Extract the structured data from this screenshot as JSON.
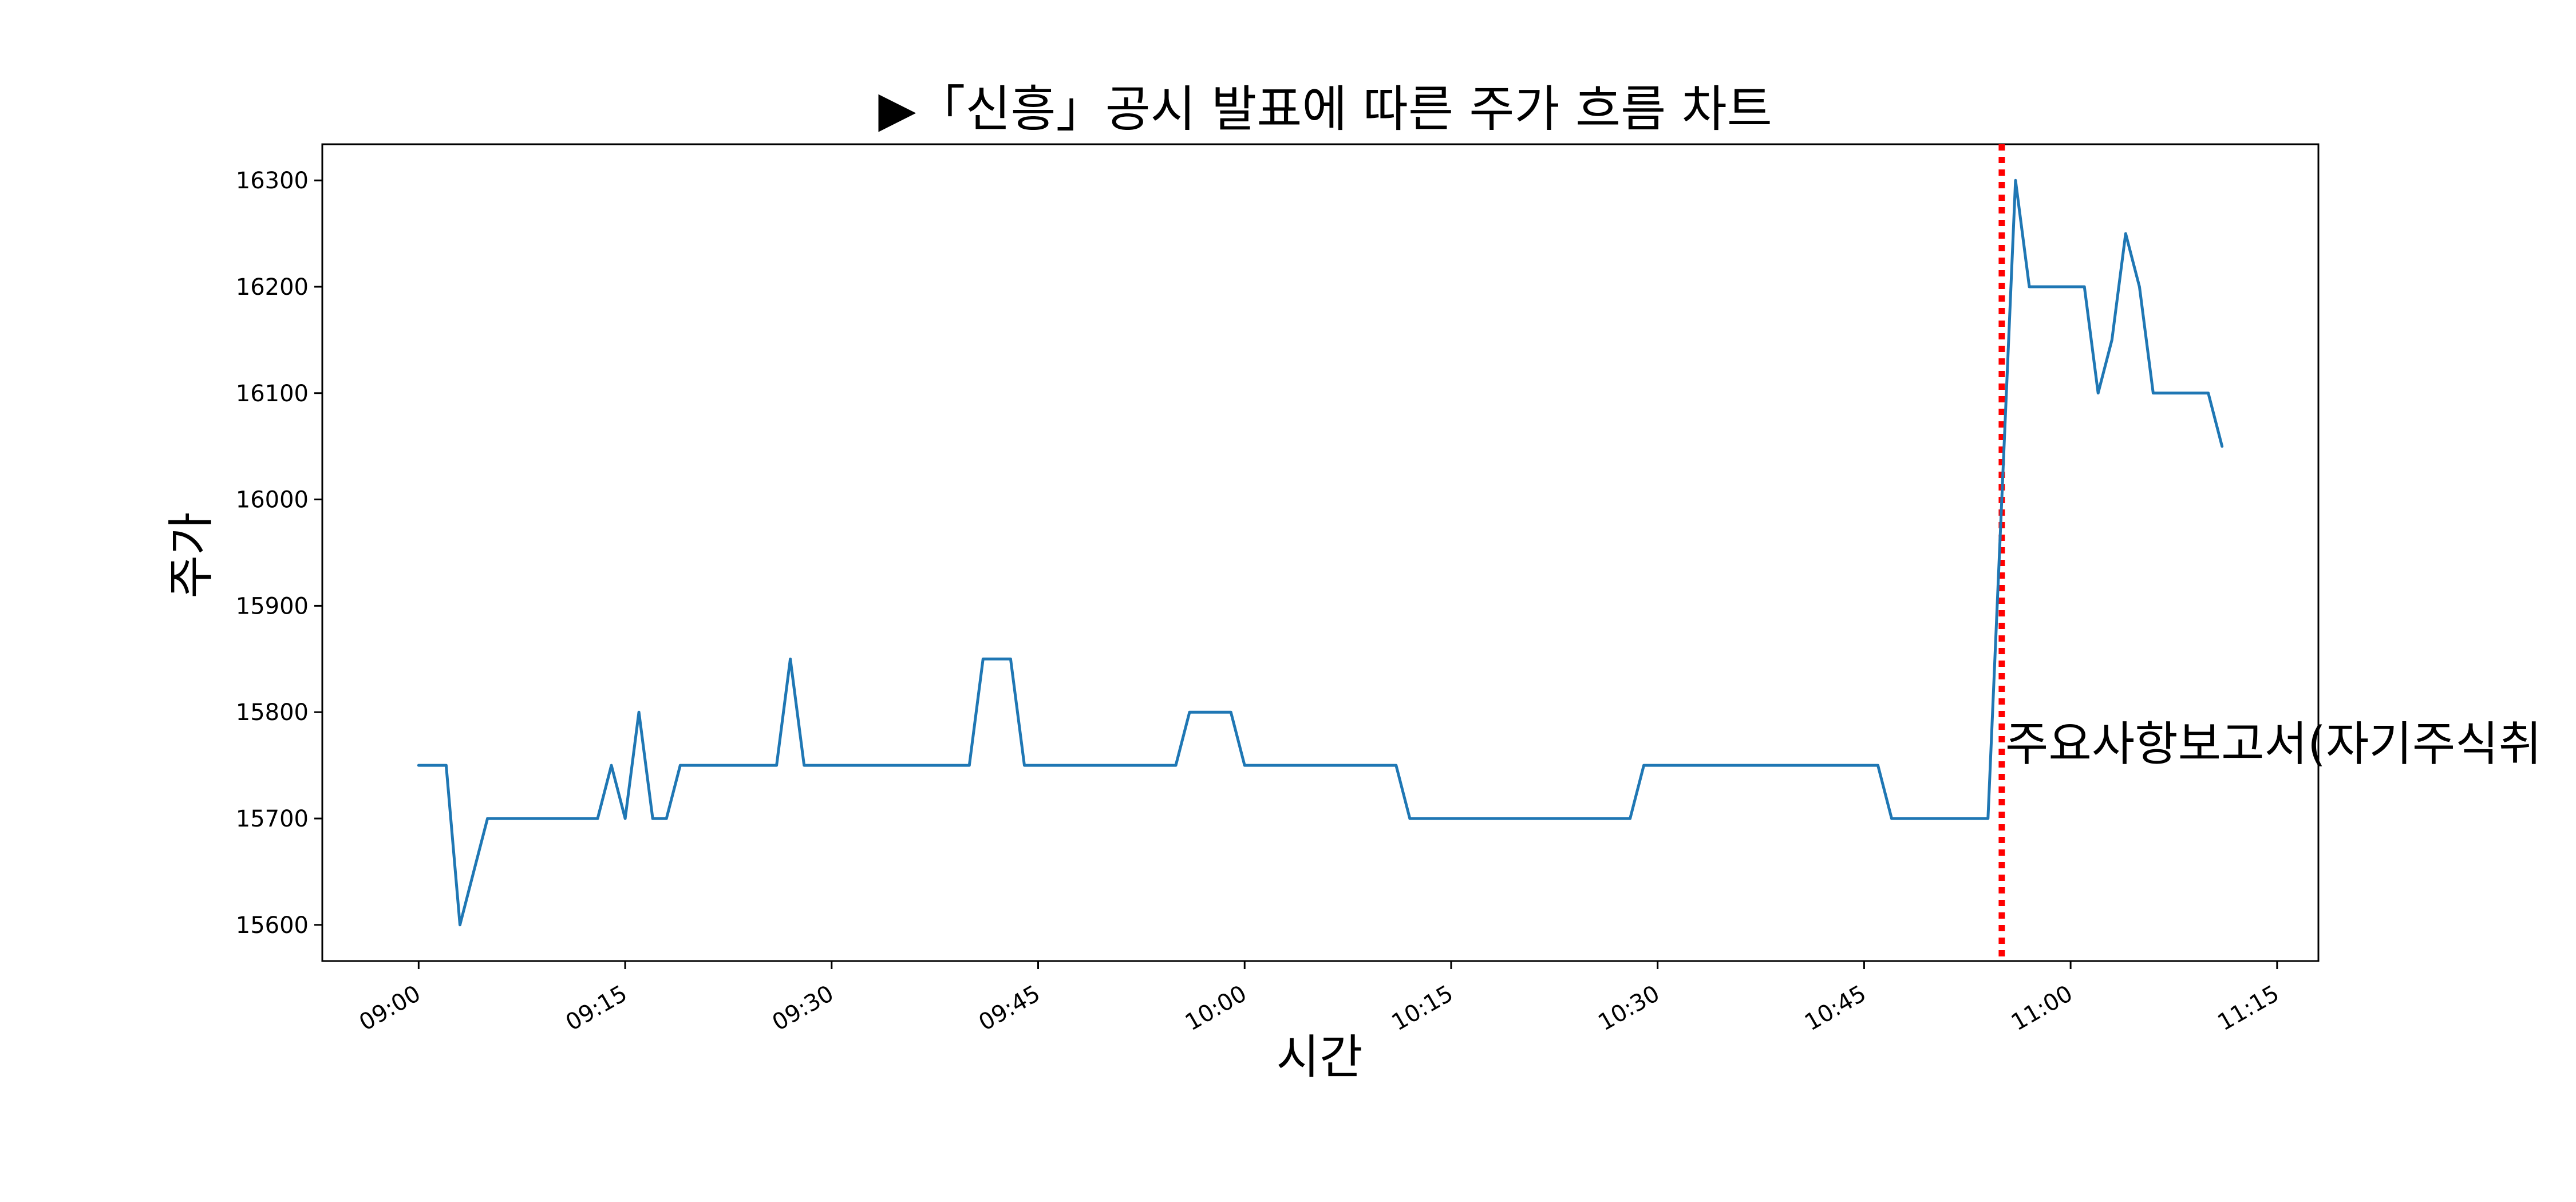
{
  "chart_data": {
    "type": "line",
    "title": "▶「신흥」공시 발표에 따른 주가 흐름 차트",
    "xlabel": "시간",
    "ylabel": "주가",
    "x_ticks": [
      "09:00",
      "09:15",
      "09:30",
      "09:45",
      "10:00",
      "10:15",
      "10:30",
      "10:45",
      "11:00",
      "11:15"
    ],
    "y_ticks": [
      15600,
      15700,
      15800,
      15900,
      16000,
      16100,
      16200,
      16300
    ],
    "xlim": [
      "08:53",
      "11:18"
    ],
    "ylim": [
      15566,
      16334
    ],
    "grid": false,
    "series": [
      {
        "color": "#1f77b4",
        "points": [
          [
            "09:00",
            15750
          ],
          [
            "09:01",
            15750
          ],
          [
            "09:02",
            15750
          ],
          [
            "09:03",
            15600
          ],
          [
            "09:04",
            15650
          ],
          [
            "09:05",
            15700
          ],
          [
            "09:06",
            15700
          ],
          [
            "09:07",
            15700
          ],
          [
            "09:08",
            15700
          ],
          [
            "09:09",
            15700
          ],
          [
            "09:10",
            15700
          ],
          [
            "09:11",
            15700
          ],
          [
            "09:12",
            15700
          ],
          [
            "09:13",
            15700
          ],
          [
            "09:14",
            15750
          ],
          [
            "09:15",
            15700
          ],
          [
            "09:16",
            15800
          ],
          [
            "09:17",
            15700
          ],
          [
            "09:18",
            15700
          ],
          [
            "09:19",
            15750
          ],
          [
            "09:20",
            15750
          ],
          [
            "09:25",
            15750
          ],
          [
            "09:26",
            15750
          ],
          [
            "09:27",
            15850
          ],
          [
            "09:28",
            15750
          ],
          [
            "09:29",
            15750
          ],
          [
            "09:35",
            15750
          ],
          [
            "09:40",
            15750
          ],
          [
            "09:41",
            15850
          ],
          [
            "09:42",
            15850
          ],
          [
            "09:43",
            15850
          ],
          [
            "09:44",
            15750
          ],
          [
            "09:50",
            15750
          ],
          [
            "09:55",
            15750
          ],
          [
            "09:56",
            15800
          ],
          [
            "09:57",
            15800
          ],
          [
            "09:58",
            15800
          ],
          [
            "09:59",
            15800
          ],
          [
            "10:00",
            15750
          ],
          [
            "10:05",
            15750
          ],
          [
            "10:10",
            15750
          ],
          [
            "10:11",
            15750
          ],
          [
            "10:12",
            15700
          ],
          [
            "10:15",
            15700
          ],
          [
            "10:20",
            15700
          ],
          [
            "10:25",
            15700
          ],
          [
            "10:28",
            15700
          ],
          [
            "10:29",
            15750
          ],
          [
            "10:35",
            15750
          ],
          [
            "10:40",
            15750
          ],
          [
            "10:45",
            15750
          ],
          [
            "10:46",
            15750
          ],
          [
            "10:47",
            15700
          ],
          [
            "10:50",
            15700
          ],
          [
            "10:54",
            15700
          ],
          [
            "10:55",
            16000
          ],
          [
            "10:56",
            16300
          ],
          [
            "10:57",
            16200
          ],
          [
            "10:58",
            16200
          ],
          [
            "10:59",
            16200
          ],
          [
            "11:00",
            16200
          ],
          [
            "11:01",
            16200
          ],
          [
            "11:02",
            16100
          ],
          [
            "11:03",
            16150
          ],
          [
            "11:04",
            16250
          ],
          [
            "11:05",
            16200
          ],
          [
            "11:06",
            16100
          ],
          [
            "11:07",
            16100
          ],
          [
            "11:08",
            16100
          ],
          [
            "11:09",
            16100
          ],
          [
            "11:10",
            16100
          ],
          [
            "11:11",
            16050
          ]
        ]
      }
    ],
    "event_line": {
      "x": "10:55",
      "color": "#ff0000",
      "style": "dotted"
    },
    "annotation": {
      "text": "주요사항보고서(자기주식취",
      "x": "10:55",
      "y": 15770
    }
  }
}
